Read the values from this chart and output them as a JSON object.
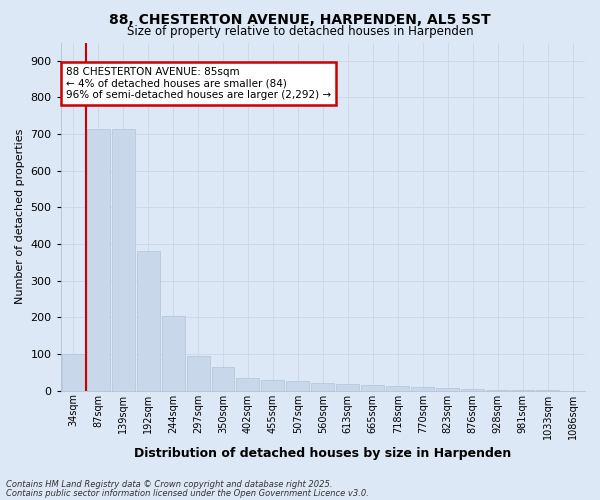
{
  "title_line1": "88, CHESTERTON AVENUE, HARPENDEN, AL5 5ST",
  "title_line2": "Size of property relative to detached houses in Harpenden",
  "xlabel": "Distribution of detached houses by size in Harpenden",
  "ylabel": "Number of detached properties",
  "categories": [
    "34sqm",
    "87sqm",
    "139sqm",
    "192sqm",
    "244sqm",
    "297sqm",
    "350sqm",
    "402sqm",
    "455sqm",
    "507sqm",
    "560sqm",
    "613sqm",
    "665sqm",
    "718sqm",
    "770sqm",
    "823sqm",
    "876sqm",
    "928sqm",
    "981sqm",
    "1033sqm",
    "1086sqm"
  ],
  "values": [
    100,
    715,
    715,
    380,
    205,
    95,
    65,
    35,
    30,
    25,
    20,
    18,
    15,
    12,
    10,
    8,
    5,
    3,
    2,
    1,
    0
  ],
  "bar_color": "#c8d8ea",
  "bar_edge_color": "#b0c4d8",
  "vline_color": "#cc0000",
  "vline_x": 0.5,
  "annotation_title": "88 CHESTERTON AVENUE: 85sqm",
  "annotation_line2": "← 4% of detached houses are smaller (84)",
  "annotation_line3": "96% of semi-detached houses are larger (2,292) →",
  "annotation_box_color": "#cc0000",
  "annotation_bg_color": "#ffffff",
  "ylim": [
    0,
    950
  ],
  "yticks": [
    0,
    100,
    200,
    300,
    400,
    500,
    600,
    700,
    800,
    900
  ],
  "grid_color": "#cdd8e8",
  "background_color": "#dce8f5",
  "footnote_line1": "Contains HM Land Registry data © Crown copyright and database right 2025.",
  "footnote_line2": "Contains public sector information licensed under the Open Government Licence v3.0."
}
